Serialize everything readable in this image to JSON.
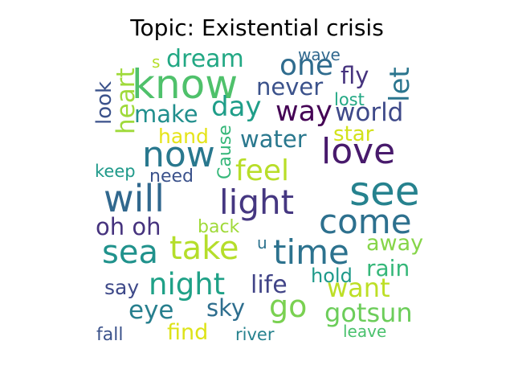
{
  "title": "Topic: Existential crisis",
  "words": [
    {
      "text": "know",
      "color": "#4fc16b"
    },
    {
      "text": "now",
      "color": "#29788e"
    },
    {
      "text": "will",
      "color": "#31688e"
    },
    {
      "text": "see",
      "color": "#26828e"
    },
    {
      "text": "love",
      "color": "#481a6c"
    },
    {
      "text": "light",
      "color": "#453781"
    },
    {
      "text": "come",
      "color": "#2d708e"
    },
    {
      "text": "time",
      "color": "#2c728e"
    },
    {
      "text": "sea",
      "color": "#20928c"
    },
    {
      "text": "take",
      "color": "#b5de2b"
    },
    {
      "text": "go",
      "color": "#7ad151"
    },
    {
      "text": "night",
      "color": "#1fa187"
    },
    {
      "text": "one",
      "color": "#2f6c8e"
    },
    {
      "text": "feel",
      "color": "#b8de29"
    },
    {
      "text": "way",
      "color": "#440154"
    },
    {
      "text": "day",
      "color": "#1f9e89"
    },
    {
      "text": "let",
      "color": "#2b758e"
    },
    {
      "text": "heart",
      "color": "#9fda3a"
    },
    {
      "text": "dream",
      "color": "#22a884"
    },
    {
      "text": "world",
      "color": "#3e4989"
    },
    {
      "text": "never",
      "color": "#3b528b"
    },
    {
      "text": "make",
      "color": "#218f8d"
    },
    {
      "text": "fly",
      "color": "#46337e"
    },
    {
      "text": "water",
      "color": "#2a788e"
    },
    {
      "text": "want",
      "color": "#bddf26"
    },
    {
      "text": "life",
      "color": "#414487"
    },
    {
      "text": "eye",
      "color": "#277f8e"
    },
    {
      "text": "sky",
      "color": "#2e6e8e"
    },
    {
      "text": "gotsun",
      "color": "#6ccd5a"
    },
    {
      "text": "hand",
      "color": "#e5e419"
    },
    {
      "text": "star",
      "color": "#d2e21b"
    },
    {
      "text": "look",
      "color": "#3b528b"
    },
    {
      "text": "oh oh",
      "color": "#46337e"
    },
    {
      "text": "away",
      "color": "#86d549"
    },
    {
      "text": "rain",
      "color": "#35b779"
    },
    {
      "text": "say",
      "color": "#3e4989"
    },
    {
      "text": "find",
      "color": "#dde318"
    },
    {
      "text": "hold",
      "color": "#1f9a8a"
    },
    {
      "text": "Cause",
      "color": "#35b779"
    },
    {
      "text": "back",
      "color": "#a0da39"
    },
    {
      "text": "need",
      "color": "#3b528b"
    },
    {
      "text": "keep",
      "color": "#1f9a8a"
    },
    {
      "text": "lost",
      "color": "#22a884"
    },
    {
      "text": "wave",
      "color": "#31688e"
    },
    {
      "text": "river",
      "color": "#26828e"
    },
    {
      "text": "leave",
      "color": "#4ac16d"
    },
    {
      "text": "fall",
      "color": "#3b528b"
    },
    {
      "text": "s",
      "color": "#b5de2b"
    },
    {
      "text": "u",
      "color": "#2c728e"
    }
  ]
}
